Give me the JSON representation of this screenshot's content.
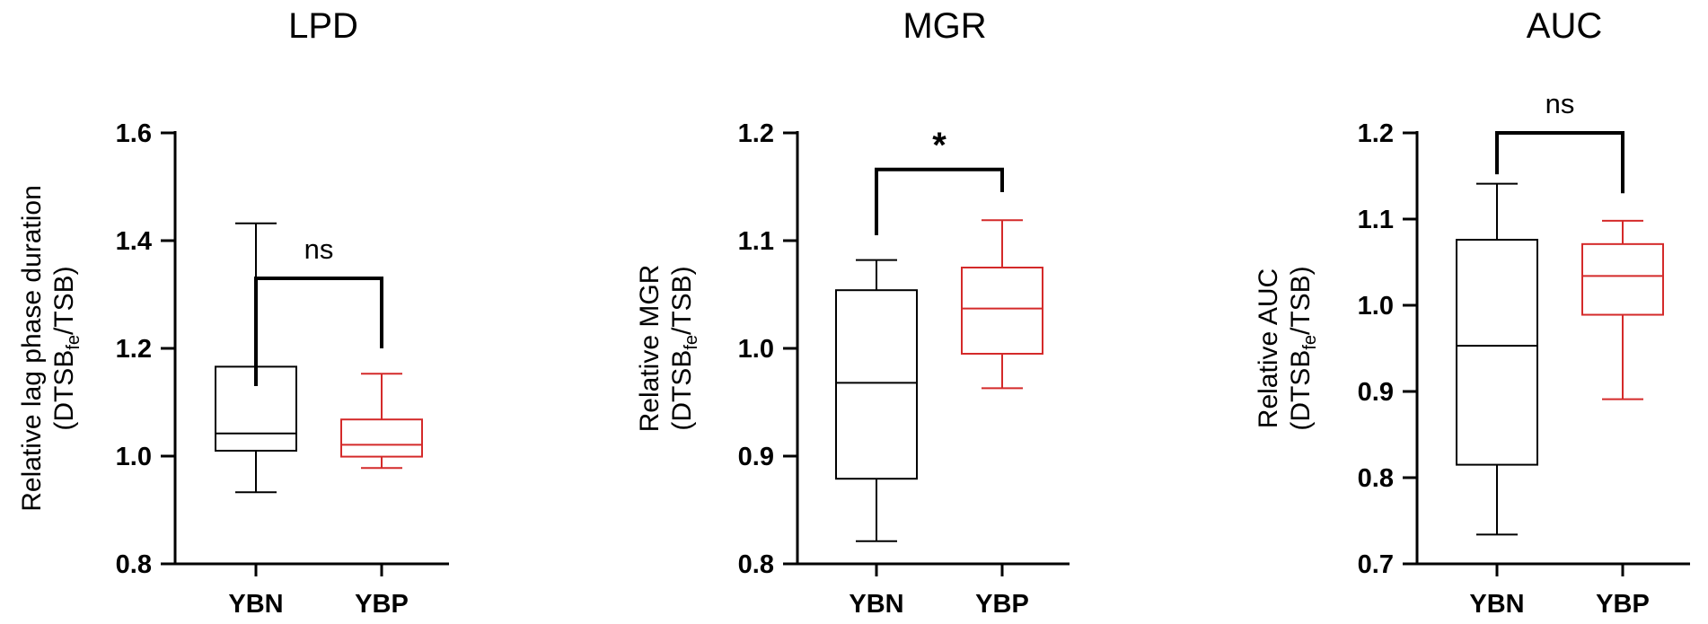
{
  "colors": {
    "YBN": "#000000",
    "YBP": "#d42a2a"
  },
  "chart_data": [
    {
      "type": "box",
      "title": "LPD",
      "ylabel": "Relative lag phase duration",
      "ylabel2_parts": [
        "(DTSB",
        "fe",
        "/TSB)"
      ],
      "ylim": [
        0.8,
        1.6
      ],
      "yticks": [
        0.8,
        1.0,
        1.2,
        1.4,
        1.6
      ],
      "tick_format": 1,
      "categories": [
        "YBN",
        "YBP"
      ],
      "boxes": [
        {
          "name": "YBN",
          "min": 0.933,
          "q1": 1.01,
          "median": 1.042,
          "q3": 1.166,
          "max": 1.432
        },
        {
          "name": "YBP",
          "min": 0.978,
          "q1": 0.999,
          "median": 1.021,
          "q3": 1.068,
          "max": 1.153
        }
      ],
      "significance": {
        "label": "ns",
        "left_y": 1.13,
        "right_y": 1.2,
        "top_y": 1.33
      }
    },
    {
      "type": "box",
      "title": "MGR",
      "ylabel": "Relative MGR",
      "ylabel2_parts": [
        "(DTSB",
        "fe",
        "/TSB)"
      ],
      "ylim": [
        0.8,
        1.2
      ],
      "yticks": [
        0.8,
        0.9,
        1.0,
        1.1,
        1.2
      ],
      "tick_format": 1,
      "categories": [
        "YBN",
        "YBP"
      ],
      "boxes": [
        {
          "name": "YBN",
          "min": 0.821,
          "q1": 0.879,
          "median": 0.968,
          "q3": 1.054,
          "max": 1.082
        },
        {
          "name": "YBP",
          "min": 0.963,
          "q1": 0.995,
          "median": 1.037,
          "q3": 1.075,
          "max": 1.119
        }
      ],
      "significance": {
        "label": "*",
        "left_y": 1.105,
        "right_y": 1.145,
        "top_y": 1.166
      }
    },
    {
      "type": "box",
      "title": "AUC",
      "ylabel": "Relative AUC",
      "ylabel2_parts": [
        "(DTSB",
        "fe",
        "/TSB)"
      ],
      "ylim": [
        0.7,
        1.2
      ],
      "yticks": [
        0.7,
        0.8,
        0.9,
        1.0,
        1.1,
        1.2
      ],
      "tick_format": 1,
      "categories": [
        "YBN",
        "YBP"
      ],
      "boxes": [
        {
          "name": "YBN",
          "min": 0.734,
          "q1": 0.815,
          "median": 0.953,
          "q3": 1.076,
          "max": 1.141
        },
        {
          "name": "YBP",
          "min": 0.891,
          "q1": 0.989,
          "median": 1.034,
          "q3": 1.071,
          "max": 1.098
        }
      ],
      "significance": {
        "label": "ns",
        "left_y": 1.152,
        "right_y": 1.13,
        "top_y": 1.2
      }
    }
  ]
}
